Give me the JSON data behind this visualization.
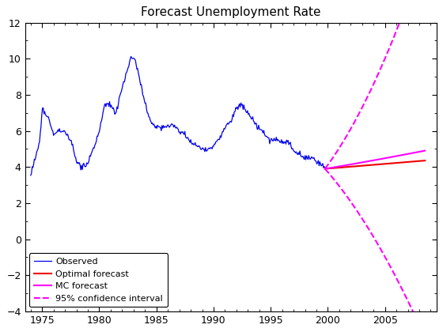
{
  "title": "Forecast Unemployment Rate",
  "xlim": [
    1973.5,
    2009.5
  ],
  "ylim": [
    -4,
    12
  ],
  "xticks": [
    1975,
    1980,
    1985,
    1990,
    1995,
    2000,
    2005
  ],
  "yticks": [
    -4,
    -2,
    0,
    2,
    4,
    6,
    8,
    10,
    12
  ],
  "observed_color": "#0000EE",
  "optimal_color": "#EE0000",
  "mc_color": "#FF00FF",
  "ci_color": "#FF00FF",
  "forecast_start": 1999.75,
  "forecast_end": 2008.5,
  "title_fontsize": 11,
  "title_fontweight": "normal",
  "legend_labels": [
    "Observed",
    "Optimal forecast",
    "MC forecast",
    "95% confidence interval"
  ],
  "legend_fontsize": 8
}
